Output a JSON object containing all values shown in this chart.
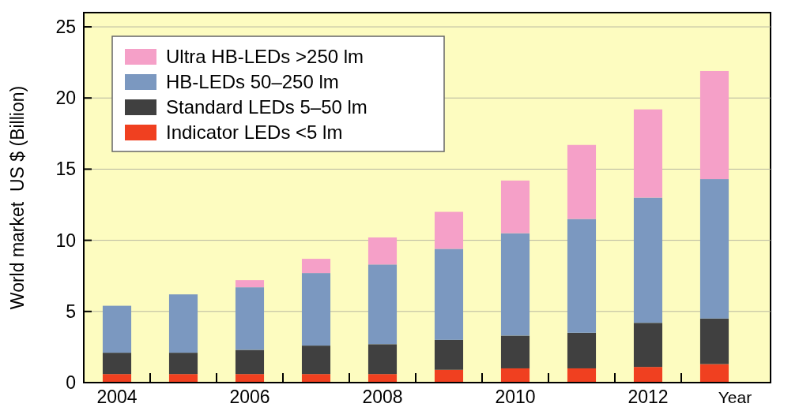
{
  "chart_data": {
    "type": "bar",
    "stacked": true,
    "ylabel": "World market  US $ (Billion)",
    "xlabel": "Year",
    "categories": [
      "2004",
      null,
      "2006",
      null,
      "2008",
      null,
      "2010",
      null,
      "2012",
      null
    ],
    "series": [
      {
        "name": "Indicator LEDs <5 lm",
        "color": "#f04020",
        "values": [
          0.6,
          0.6,
          0.6,
          0.6,
          0.6,
          0.9,
          1.0,
          1.0,
          1.1,
          1.3
        ]
      },
      {
        "name": "Standard LEDs 5–50 lm",
        "color": "#404040",
        "values": [
          1.5,
          1.5,
          1.7,
          2.0,
          2.1,
          2.1,
          2.3,
          2.5,
          3.1,
          3.2
        ]
      },
      {
        "name": "HB-LEDs 50–250 lm",
        "color": "#7b98c0",
        "values": [
          3.3,
          4.1,
          4.4,
          5.1,
          5.6,
          6.4,
          7.2,
          8.0,
          8.8,
          9.8
        ]
      },
      {
        "name": "Ultra HB-LEDs >250 lm",
        "color": "#f5a0c8",
        "values": [
          0,
          0,
          0.5,
          1.0,
          1.9,
          2.6,
          3.7,
          5.2,
          6.2,
          7.6
        ]
      }
    ],
    "ylim": [
      0,
      26
    ],
    "yticks": [
      0,
      5,
      10,
      15,
      20,
      25
    ],
    "grid": "y",
    "legend": "top left"
  }
}
